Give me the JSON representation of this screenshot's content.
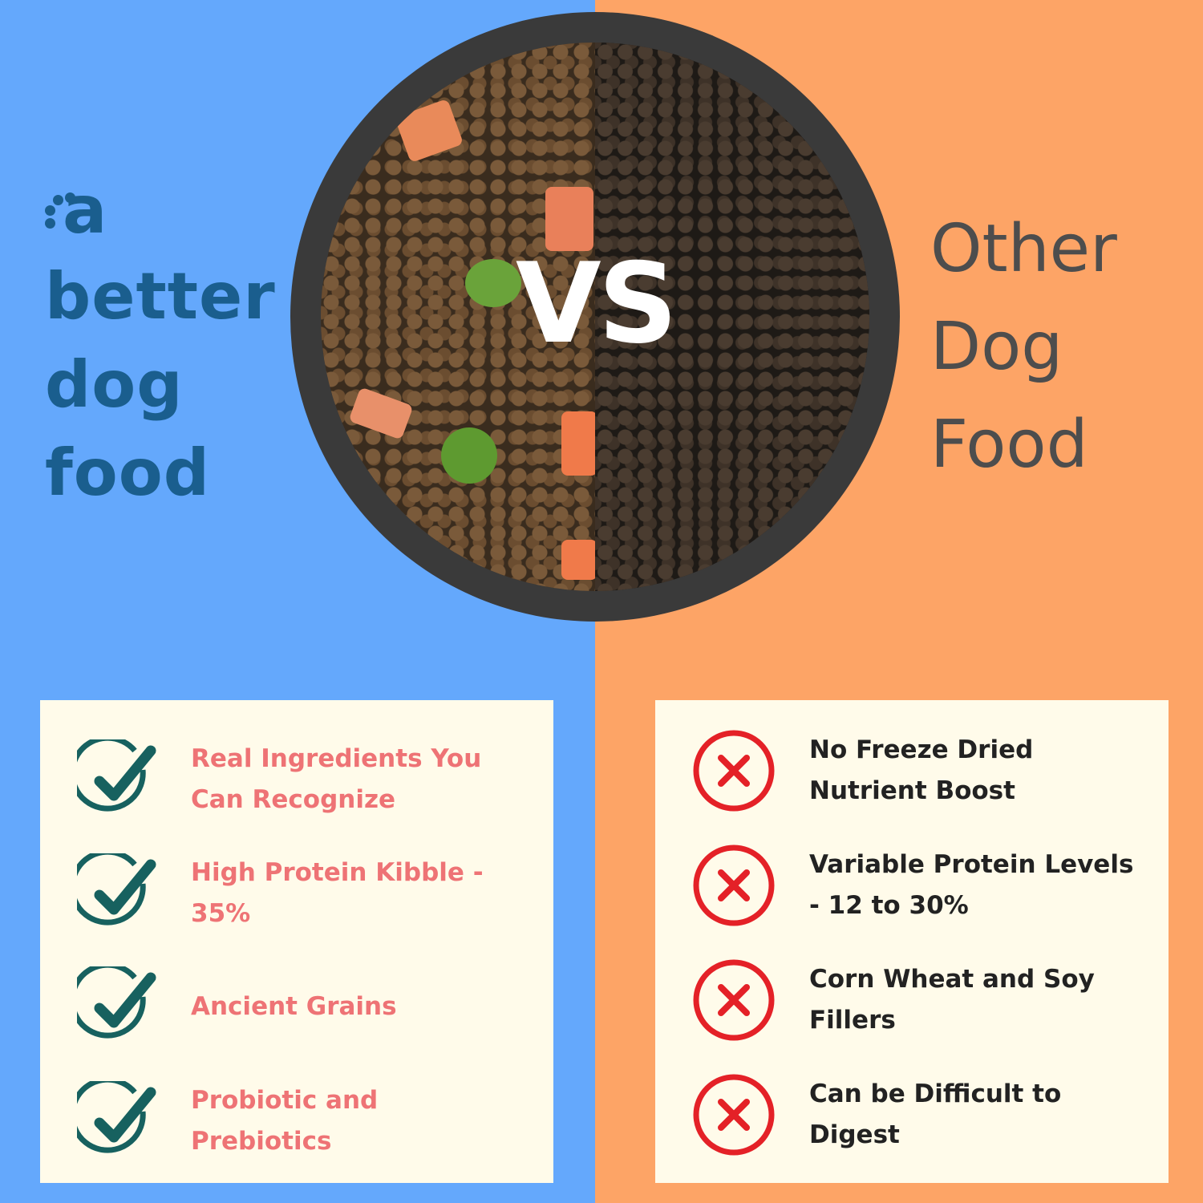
{
  "brand": {
    "logo_letter": "a",
    "lines": [
      "better",
      "dog",
      "food"
    ]
  },
  "center": {
    "vs_label": "VS"
  },
  "competitor": {
    "lines": [
      "Other",
      "Dog",
      "Food"
    ]
  },
  "colors": {
    "left_bg": "#64a8fc",
    "right_bg": "#fda466",
    "panel": "#fffbea",
    "check": "#17615f",
    "pro_text": "#ee7375",
    "cross": "#e42127",
    "brand_text": "#1a5e8e"
  },
  "pros": {
    "icon": "check-circle-icon",
    "items": [
      {
        "label": "Real Ingredients You Can Recognize"
      },
      {
        "label": "High Protein Kibble - 35%"
      },
      {
        "label": "Ancient Grains"
      },
      {
        "label": "Probiotic and Prebiotics"
      }
    ]
  },
  "cons": {
    "icon": "x-circle-icon",
    "items": [
      {
        "label": "No Freeze Dried Nutrient Boost"
      },
      {
        "label": "Variable Protein Levels - 12 to 30%"
      },
      {
        "label": "Corn Wheat and Soy Fillers"
      },
      {
        "label": "Can be Difficult to Digest"
      }
    ]
  }
}
